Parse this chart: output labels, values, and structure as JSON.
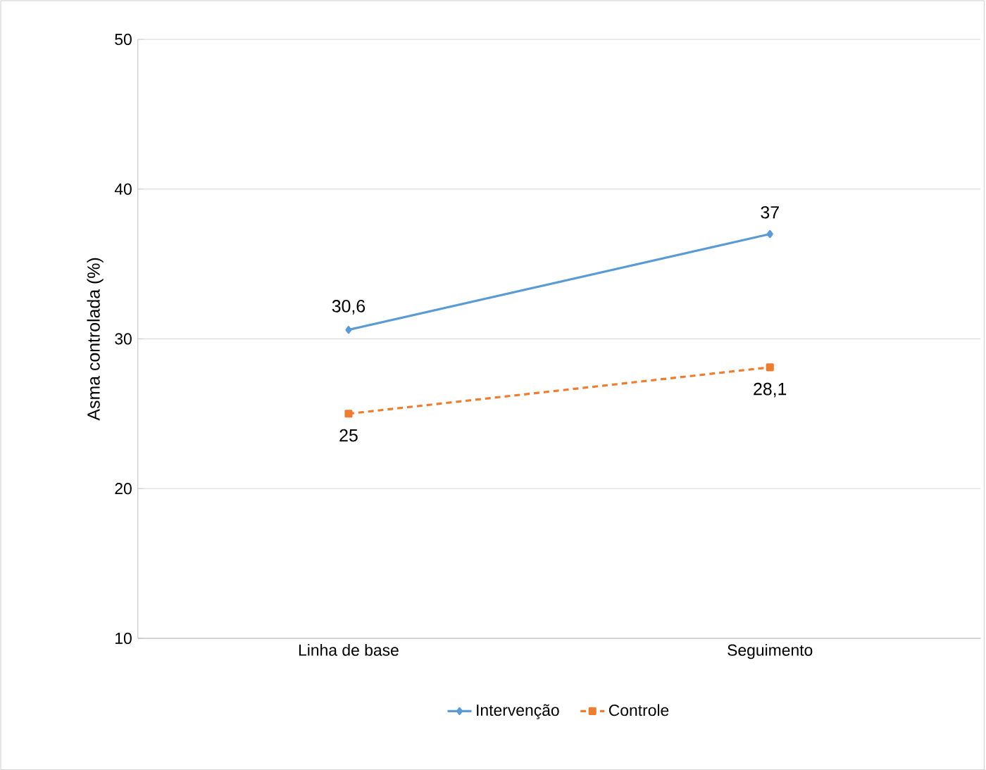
{
  "chart_data": {
    "type": "line",
    "ylabel": "Asma controlada (%)",
    "categories": [
      "Linha de base",
      "Seguimento"
    ],
    "ylim": [
      10,
      50
    ],
    "yticks": [
      10,
      20,
      30,
      40,
      50
    ],
    "grid": "y",
    "legend": "bottom",
    "series": [
      {
        "name": "Intervenção",
        "color": "#5b9bd5",
        "values": [
          30.6,
          37
        ],
        "value_labels": [
          "30,6",
          "37"
        ],
        "marker": "diamond",
        "line_style": "solid"
      },
      {
        "name": "Controle",
        "color": "#ed7d31",
        "values": [
          25,
          28.1
        ],
        "value_labels": [
          "25",
          "28,1"
        ],
        "marker": "square",
        "line_style": "dashed"
      }
    ]
  }
}
